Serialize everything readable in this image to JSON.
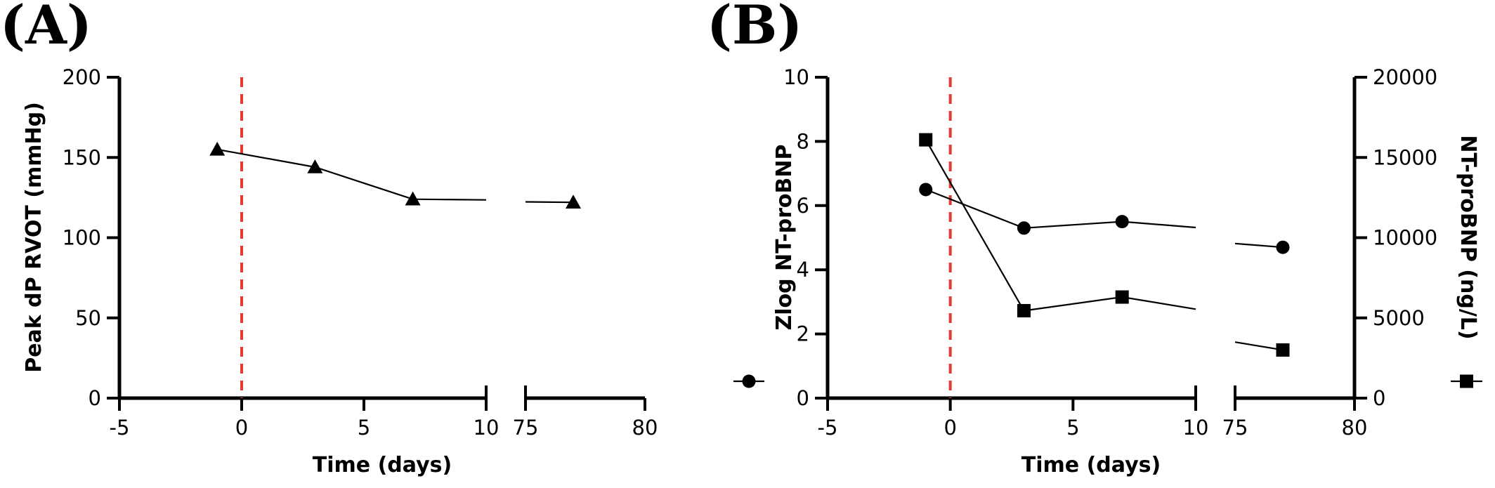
{
  "chart_data": [
    {
      "type": "line",
      "panel_label": "(A)",
      "xlabel": "Time (days)",
      "ylabel": "Peak dP RVOT (mmHg)",
      "xlim_segments": [
        [
          -5,
          10
        ],
        [
          75,
          80
        ]
      ],
      "x_ticks": [
        -5,
        0,
        5,
        10,
        75,
        80
      ],
      "ylim": [
        0,
        200
      ],
      "y_ticks": [
        0,
        50,
        100,
        150,
        200
      ],
      "reference_line": {
        "x": 0,
        "color": "#e53935",
        "style": "dashed"
      },
      "series": [
        {
          "marker": "triangle",
          "x": [
            -1,
            3,
            7,
            77
          ],
          "y": [
            155,
            144,
            124,
            122
          ]
        }
      ]
    },
    {
      "type": "line",
      "panel_label": "(B)",
      "xlabel": "Time (days)",
      "ylabel_left": "Zlog NT-proBNP",
      "ylabel_right": "NT-proBNP (ng/L)",
      "xlim_segments": [
        [
          -5,
          10
        ],
        [
          75,
          80
        ]
      ],
      "x_ticks": [
        -5,
        0,
        5,
        10,
        75,
        80
      ],
      "ylim_left": [
        0,
        10
      ],
      "y_ticks_left": [
        0,
        2,
        4,
        6,
        8,
        10
      ],
      "ylim_right": [
        0,
        20000
      ],
      "y_ticks_right": [
        0,
        5000,
        10000,
        15000,
        20000
      ],
      "reference_line": {
        "x": 0,
        "color": "#e53935",
        "style": "dashed"
      },
      "series": [
        {
          "marker": "circle",
          "axis": "left",
          "x": [
            -1,
            3,
            7,
            77
          ],
          "y": [
            6.5,
            5.3,
            5.5,
            4.7
          ]
        },
        {
          "marker": "square",
          "axis": "right",
          "x": [
            -1,
            3,
            7,
            77
          ],
          "y": [
            16100,
            5450,
            6300,
            3000
          ]
        }
      ]
    }
  ]
}
